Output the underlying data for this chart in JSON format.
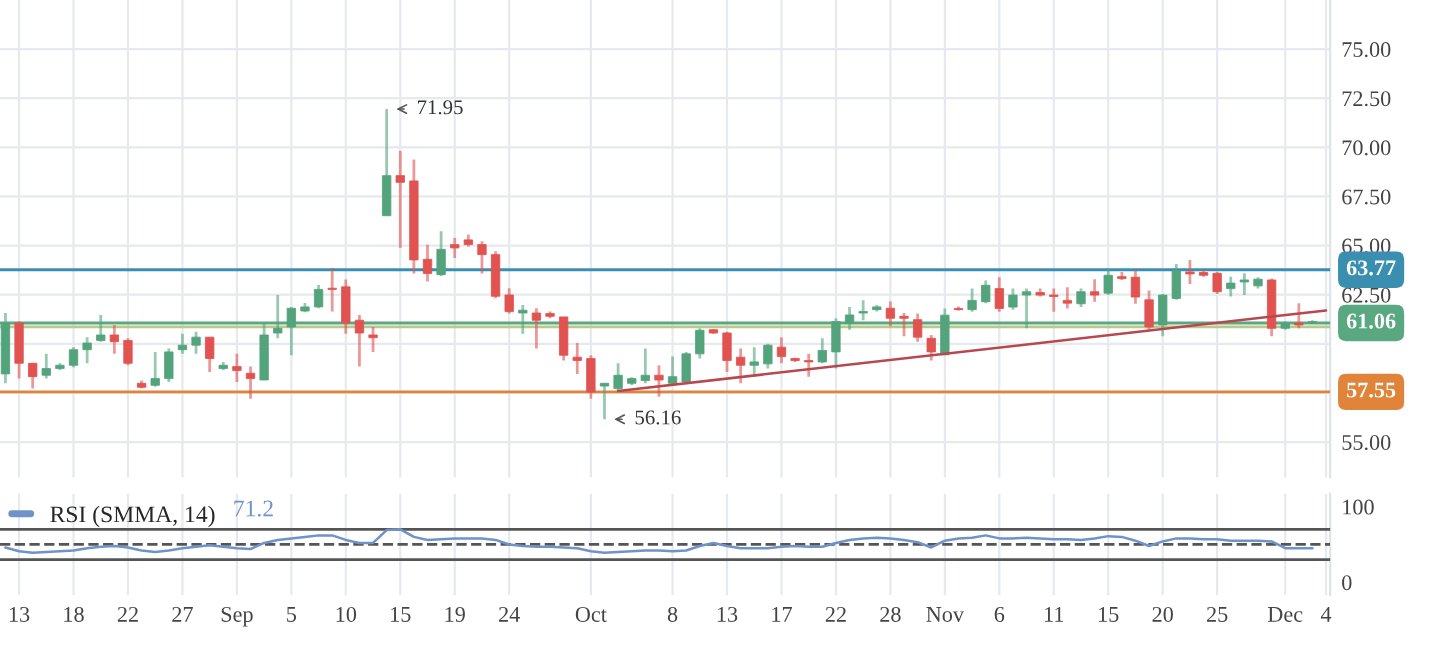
{
  "chart_data": [
    {
      "type": "candlestick",
      "categories": [
        null,
        null,
        null,
        null,
        null,
        null,
        null,
        null,
        null,
        null,
        null,
        null,
        null,
        null,
        null,
        null,
        null,
        null,
        null,
        null,
        null,
        null,
        null,
        null,
        null,
        null,
        null,
        null,
        null,
        null,
        null,
        null,
        null,
        null,
        null,
        null,
        null,
        null,
        null,
        null,
        null,
        null,
        null,
        null,
        null,
        null,
        null,
        null,
        null,
        null,
        null,
        null,
        null,
        null,
        null,
        null,
        null,
        null,
        null,
        null,
        null,
        null,
        null,
        null,
        null,
        null,
        null,
        null,
        null,
        null,
        null,
        null,
        null,
        null,
        null,
        null,
        null,
        null,
        null,
        null,
        null,
        null,
        null,
        null,
        null,
        null,
        null,
        null,
        null,
        null,
        null,
        null,
        null,
        null,
        null,
        null,
        null,
        null
      ],
      "ohlc": [
        [
          58.47,
          61.57,
          57.99,
          61.06
        ],
        [
          61.06,
          61.13,
          58.23,
          59.01
        ],
        [
          59.01,
          59.01,
          57.72,
          58.33
        ],
        [
          58.4,
          59.49,
          58.23,
          58.74
        ],
        [
          58.74,
          59.01,
          58.67,
          58.91
        ],
        [
          58.91,
          59.83,
          58.81,
          59.7
        ],
        [
          59.7,
          60.34,
          59.01,
          60.04
        ],
        [
          60.17,
          61.47,
          60.11,
          60.45
        ],
        [
          60.45,
          60.96,
          59.49,
          60.11
        ],
        [
          60.17,
          60.28,
          58.91,
          59.01
        ],
        [
          57.99,
          58.13,
          57.72,
          57.79
        ],
        [
          57.89,
          59.59,
          57.82,
          58.23
        ],
        [
          58.23,
          59.76,
          58.06,
          59.59
        ],
        [
          59.7,
          60.51,
          59.49,
          59.93
        ],
        [
          59.93,
          60.62,
          59.49,
          60.34
        ],
        [
          60.34,
          60.34,
          58.57,
          59.25
        ],
        [
          58.74,
          59.08,
          58.67,
          58.91
        ],
        [
          58.84,
          59.49,
          58.06,
          58.64
        ],
        [
          58.5,
          58.84,
          57.21,
          58.23
        ],
        [
          58.16,
          61.06,
          58.16,
          60.45
        ],
        [
          60.55,
          62.49,
          60.28,
          60.79
        ],
        [
          60.86,
          61.88,
          59.42,
          61.81
        ],
        [
          61.67,
          62.08,
          61.61,
          61.88
        ],
        [
          61.88,
          63.0,
          61.81,
          62.77
        ],
        [
          62.83,
          63.86,
          61.64,
          62.77
        ],
        [
          62.9,
          63.28,
          60.51,
          61.06
        ],
        [
          61.2,
          61.47,
          58.84,
          60.55
        ],
        [
          60.45,
          60.86,
          59.59,
          60.31
        ],
        [
          66.52,
          71.95,
          66.52,
          68.56
        ],
        [
          68.56,
          69.82,
          64.88,
          68.22
        ],
        [
          68.29,
          69.38,
          63.58,
          64.27
        ],
        [
          64.3,
          65.05,
          63.17,
          63.58
        ],
        [
          63.52,
          65.73,
          63.45,
          64.81
        ],
        [
          65.05,
          65.39,
          64.37,
          64.88
        ],
        [
          65.29,
          65.56,
          64.95,
          65.05
        ],
        [
          65.05,
          65.22,
          63.58,
          64.54
        ],
        [
          64.54,
          64.71,
          62.32,
          62.42
        ],
        [
          62.49,
          62.83,
          61.54,
          61.64
        ],
        [
          61.57,
          61.98,
          60.51,
          61.71
        ],
        [
          61.57,
          61.81,
          59.76,
          61.2
        ],
        [
          61.54,
          61.64,
          61.3,
          61.4
        ],
        [
          61.37,
          61.37,
          59.15,
          59.42
        ],
        [
          59.32,
          60.04,
          58.47,
          59.15
        ],
        [
          59.25,
          59.42,
          57.21,
          57.55
        ],
        [
          57.85,
          57.99,
          56.16,
          57.99
        ],
        [
          57.72,
          59.01,
          57.65,
          58.4
        ],
        [
          57.99,
          58.3,
          57.89,
          58.23
        ],
        [
          58.13,
          59.76,
          57.99,
          58.4
        ],
        [
          58.4,
          58.91,
          57.31,
          58.16
        ],
        [
          57.99,
          59.35,
          57.89,
          58.33
        ],
        [
          58.06,
          59.59,
          57.99,
          59.49
        ],
        [
          59.49,
          60.79,
          59.25,
          60.69
        ],
        [
          60.72,
          60.75,
          60.51,
          60.55
        ],
        [
          60.55,
          60.62,
          58.57,
          59.15
        ],
        [
          59.32,
          59.76,
          57.99,
          58.91
        ],
        [
          58.91,
          59.83,
          58.33,
          59.08
        ],
        [
          58.98,
          60.0,
          58.74,
          59.93
        ],
        [
          59.83,
          60.34,
          59.01,
          59.35
        ],
        [
          59.25,
          59.29,
          59.08,
          59.15
        ],
        [
          59.15,
          59.49,
          58.33,
          59.08
        ],
        [
          59.08,
          60.28,
          59.01,
          59.66
        ],
        [
          59.59,
          61.3,
          58.74,
          61.13
        ],
        [
          61.03,
          61.88,
          60.72,
          61.47
        ],
        [
          61.57,
          62.22,
          61.2,
          61.64
        ],
        [
          61.74,
          61.98,
          61.64,
          61.88
        ],
        [
          61.81,
          62.15,
          60.89,
          61.3
        ],
        [
          61.4,
          61.57,
          60.38,
          61.3
        ],
        [
          61.23,
          61.54,
          60.11,
          60.34
        ],
        [
          60.28,
          60.45,
          59.15,
          59.59
        ],
        [
          59.44,
          61.8,
          59.44,
          61.46
        ],
        [
          61.8,
          61.9,
          61.7,
          61.74
        ],
        [
          61.74,
          62.81,
          61.63,
          62.21
        ],
        [
          62.14,
          63.22,
          62.07,
          62.98
        ],
        [
          62.81,
          63.39,
          61.63,
          61.8
        ],
        [
          61.87,
          62.81,
          61.74,
          62.48
        ],
        [
          62.48,
          62.81,
          60.79,
          62.65
        ],
        [
          62.61,
          62.81,
          62.41,
          62.48
        ],
        [
          62.48,
          62.81,
          61.63,
          62.41
        ],
        [
          62.21,
          62.88,
          61.8,
          62.07
        ],
        [
          62.04,
          62.81,
          61.87,
          62.65
        ],
        [
          62.65,
          63.29,
          62.14,
          62.48
        ],
        [
          62.58,
          63.83,
          62.48,
          63.49
        ],
        [
          63.42,
          63.66,
          63.25,
          63.32
        ],
        [
          63.39,
          63.73,
          62.04,
          62.38
        ],
        [
          62.24,
          62.71,
          60.72,
          60.86
        ],
        [
          60.96,
          62.54,
          60.39,
          62.48
        ],
        [
          62.31,
          64.06,
          62.24,
          63.73
        ],
        [
          63.66,
          64.27,
          63.05,
          63.56
        ],
        [
          63.63,
          63.76,
          63.42,
          63.49
        ],
        [
          63.59,
          63.66,
          62.54,
          62.65
        ],
        [
          62.81,
          63.42,
          62.41,
          63.09
        ],
        [
          63.15,
          63.59,
          62.48,
          63.25
        ],
        [
          62.95,
          63.39,
          62.81,
          63.29
        ],
        [
          63.25,
          63.32,
          60.39,
          60.79
        ],
        [
          60.79,
          61.13,
          60.72,
          61.03
        ],
        [
          61.06,
          62.07,
          60.79,
          60.96
        ],
        [
          61.06,
          61.2,
          61.03,
          61.13
        ],
        null
      ],
      "colors": [
        "#53a37c",
        "#e05350",
        "#e05350",
        "#53a37c",
        "#53a37c",
        "#53a37c",
        "#53a37c",
        "#53a37c",
        "#e05350",
        "#e05350",
        "#e05350",
        "#53a37c",
        "#53a37c",
        "#53a37c",
        "#53a37c",
        "#e05350",
        "#53a37c",
        "#e05350",
        "#e05350",
        "#53a37c",
        "#53a37c",
        "#53a37c",
        "#53a37c",
        "#53a37c",
        "#e05350",
        "#e05350",
        "#e05350",
        "#e05350",
        "#53a37c",
        "#e05350",
        "#e05350",
        "#e05350",
        "#53a37c",
        "#e05350",
        "#e05350",
        "#e05350",
        "#e05350",
        "#e05350",
        "#53a37c",
        "#e05350",
        "#e05350",
        "#e05350",
        "#e05350",
        "#e05350",
        "#53a37c",
        "#53a37c",
        "#53a37c",
        "#53a37c",
        "#e05350",
        "#53a37c",
        "#53a37c",
        "#53a37c",
        "#e05350",
        "#e05350",
        "#e05350",
        "#53a37c",
        "#53a37c",
        "#e05350",
        "#e05350",
        "#e05350",
        "#53a37c",
        "#53a37c",
        "#53a37c",
        "#53a37c",
        "#53a37c",
        "#e05350",
        "#e05350",
        "#e05350",
        "#e05350",
        "#53a37c",
        "#e05350",
        "#53a37c",
        "#53a37c",
        "#e05350",
        "#53a37c",
        "#53a37c",
        "#e05350",
        "#e05350",
        "#e05350",
        "#53a37c",
        "#e05350",
        "#53a37c",
        "#e05350",
        "#e05350",
        "#e05350",
        "#53a37c",
        "#53a37c",
        "#e05350",
        "#e05350",
        "#e05350",
        "#53a37c",
        "#53a37c",
        "#53a37c",
        "#e05350",
        "#53a37c",
        "#e05350",
        "#53a37c",
        null
      ],
      "series": [
        {
          "type": "line",
          "color": "#b8474e",
          "values": [
            null,
            null,
            null,
            null,
            null,
            null,
            null,
            null,
            null,
            null,
            null,
            null,
            null,
            null,
            null,
            null,
            null,
            null,
            null,
            null,
            null,
            null,
            null,
            null,
            null,
            null,
            null,
            null,
            null,
            null,
            null,
            null,
            null,
            null,
            null,
            null,
            null,
            null,
            null,
            null,
            null,
            null,
            null,
            null,
            null,
            57.6,
            null,
            null,
            null,
            null,
            null,
            null,
            null,
            null,
            null,
            null,
            null,
            null,
            null,
            null,
            null,
            null,
            null,
            null,
            null,
            null,
            null,
            null,
            null,
            null,
            null,
            null,
            null,
            null,
            null,
            null,
            null,
            null,
            null,
            null,
            null,
            null,
            null,
            null,
            null,
            null,
            null,
            null,
            null,
            null,
            null,
            null,
            null,
            null,
            null,
            null,
            null,
            61.7
          ]
        }
      ],
      "ref_lines": [
        {
          "axis": "y",
          "value": 61.06,
          "label": "61.06",
          "color": "#5aa882"
        },
        {
          "axis": "y",
          "value": 63.77,
          "label": "63.77",
          "color": "#3a8fb0"
        },
        {
          "axis": "y",
          "value": 57.55,
          "label": "57.55",
          "color": "#e0843a"
        },
        {
          "axis": "y",
          "value": 60.86,
          "color": "#b9c98a"
        }
      ],
      "annotations": [
        "71.95",
        "56.16"
      ],
      "ylim": [
        53.2,
        77.5
      ],
      "yticks": [
        {
          "value": 55,
          "label": "55.00"
        },
        {
          "value": 57.5,
          "label": null
        },
        {
          "value": 60,
          "label": null
        },
        {
          "value": 62.5,
          "label": "62.50"
        },
        {
          "value": 65,
          "label": "65.00"
        },
        {
          "value": 67.5,
          "label": "67.50"
        },
        {
          "value": 70,
          "label": "70.00"
        },
        {
          "value": 72.5,
          "label": "72.50"
        },
        {
          "value": 75,
          "label": "75.00"
        }
      ],
      "grid": true,
      "tick_labels": "y"
    },
    {
      "type": "line",
      "categories": [
        null,
        "13",
        null,
        null,
        null,
        "18",
        null,
        null,
        null,
        "22",
        null,
        null,
        null,
        "27",
        null,
        null,
        null,
        "Sep",
        null,
        null,
        null,
        "5",
        null,
        null,
        null,
        "10",
        null,
        null,
        null,
        "15",
        null,
        null,
        null,
        "19",
        null,
        null,
        null,
        "24",
        null,
        null,
        null,
        null,
        null,
        "Oct",
        null,
        null,
        null,
        null,
        null,
        "8",
        null,
        null,
        null,
        "13",
        null,
        null,
        null,
        "17",
        null,
        null,
        null,
        "22",
        null,
        null,
        null,
        "28",
        null,
        null,
        null,
        "Nov",
        null,
        null,
        null,
        "6",
        null,
        null,
        null,
        "11",
        null,
        null,
        null,
        "15",
        null,
        null,
        null,
        "20",
        null,
        null,
        null,
        "25",
        null,
        null,
        null,
        null,
        "Dec",
        null,
        null,
        "4"
      ],
      "series": [
        {
          "name": "RSI (SMMA, 14)",
          "color": "#6f93c8",
          "values": [
            46,
            41,
            39,
            40,
            41,
            42,
            45,
            47,
            48,
            46,
            42,
            40,
            42,
            45,
            47,
            49,
            47,
            45,
            44,
            52,
            56,
            58,
            60,
            62,
            62,
            56,
            52,
            52,
            69,
            70,
            60,
            56,
            57,
            58,
            58,
            58,
            56,
            50,
            48,
            47,
            47,
            46,
            45,
            41,
            39,
            40,
            41,
            42,
            42,
            41,
            42,
            48,
            52,
            48,
            45,
            45,
            45,
            47,
            48,
            47,
            47,
            52,
            56,
            58,
            59,
            58,
            56,
            53,
            46,
            55,
            58,
            59,
            62,
            58,
            58,
            59,
            58,
            57,
            57,
            56,
            58,
            61,
            60,
            55,
            48,
            54,
            58,
            58,
            57,
            57,
            55,
            55,
            55,
            54,
            45,
            45,
            45,
            null
          ]
        }
      ],
      "ref_lines": [
        {
          "axis": "y",
          "value": 70,
          "color": "#555555",
          "line_style": "solid"
        },
        {
          "axis": "y",
          "value": 50,
          "color": "#555555",
          "line_style": "dashed"
        },
        {
          "axis": "y",
          "value": 30,
          "color": "#555555",
          "line_style": "solid"
        }
      ],
      "annotations": [
        "71.2"
      ],
      "ylim": [
        -17,
        117
      ],
      "yticks": [
        0,
        100
      ],
      "grid": "x",
      "legend": "top left"
    }
  ]
}
